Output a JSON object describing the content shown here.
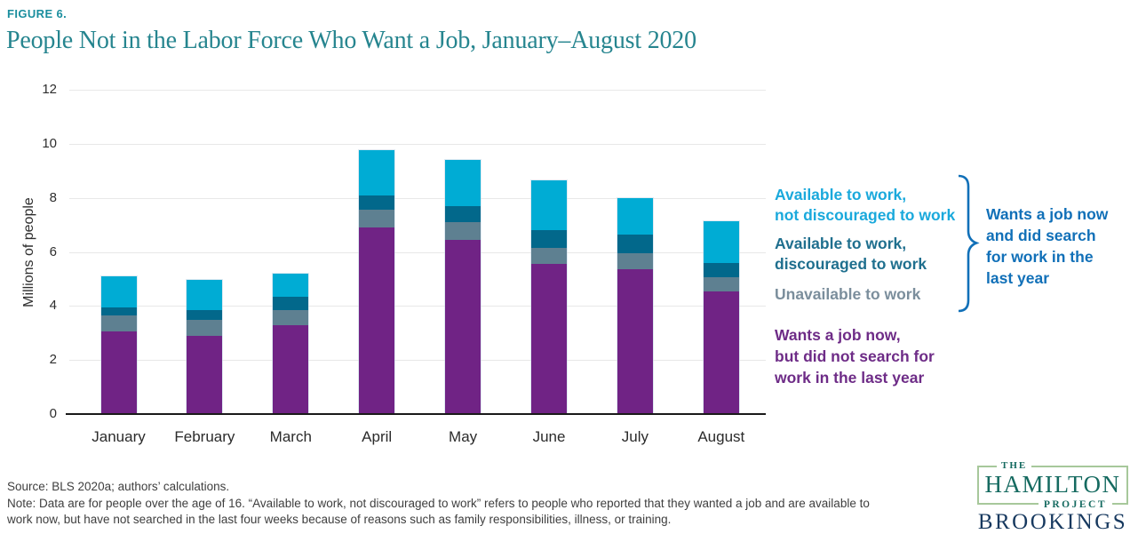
{
  "page": {
    "figure_label": "FIGURE 6.",
    "title": "People Not in the Labor Force Who Want a Job, January–August 2020"
  },
  "chart_data": {
    "type": "bar",
    "stacked": true,
    "title": "People Not in the Labor Force Who Want a Job, January–August 2020",
    "xlabel": "",
    "ylabel": "Millions of people",
    "ylim": [
      0,
      12
    ],
    "yticks": [
      0,
      2,
      4,
      6,
      8,
      10,
      12
    ],
    "grid": true,
    "legend_position": "right",
    "categories": [
      "January",
      "February",
      "March",
      "April",
      "May",
      "June",
      "July",
      "August"
    ],
    "series": [
      {
        "name": "Wants a job now, but did not search for work in the last year",
        "color": "#702385",
        "values": [
          3.05,
          2.9,
          3.3,
          6.9,
          6.45,
          5.55,
          5.35,
          4.55
        ]
      },
      {
        "name": "Unavailable to work",
        "color": "#5E8091",
        "values": [
          0.6,
          0.6,
          0.55,
          0.65,
          0.65,
          0.6,
          0.6,
          0.5
        ]
      },
      {
        "name": "Available to work, discouraged to work",
        "color": "#02688B",
        "values": [
          0.3,
          0.35,
          0.5,
          0.55,
          0.6,
          0.65,
          0.7,
          0.55
        ]
      },
      {
        "name": "Available to work, not discouraged to work",
        "color": "#00ACD4",
        "values": [
          1.15,
          1.1,
          0.85,
          1.65,
          1.7,
          1.85,
          1.35,
          1.55
        ]
      }
    ],
    "totals": [
      5.1,
      4.95,
      5.2,
      9.75,
      9.4,
      8.65,
      8.0,
      7.15
    ]
  },
  "legend": {
    "items": [
      {
        "lines": [
          "Available to work,",
          "not discouraged to work"
        ],
        "color": "#1AA9DC"
      },
      {
        "lines": [
          "Available to work,",
          "discouraged to work"
        ],
        "color": "#1F6F8E"
      },
      {
        "lines": [
          "Unavailable to work"
        ],
        "color": "#7B8E9C"
      }
    ],
    "bracket_label": {
      "lines": [
        "Wants a job now",
        "and did search",
        "for work in the",
        "last year"
      ],
      "color": "#1170B8"
    },
    "purple_label": {
      "lines": [
        "Wants a job now,",
        "but did not search for",
        "work in the last year"
      ],
      "color": "#6E2C87"
    },
    "bracket_color": "#1170B8"
  },
  "footer": {
    "source": "Source: BLS 2020a; authors’ calculations.",
    "note_line1": "Note: Data are for people over the age of 16. “Available to work, not discouraged to work” refers to people who reported that they wanted a job and are available to",
    "note_line2": "work now, but have not searched in the last four weeks because of reasons such as family responsibilities, illness, or training."
  },
  "logo": {
    "the": "THE",
    "hamilton": "HAMILTON",
    "project": "PROJECT",
    "brookings": "BROOKINGS"
  }
}
